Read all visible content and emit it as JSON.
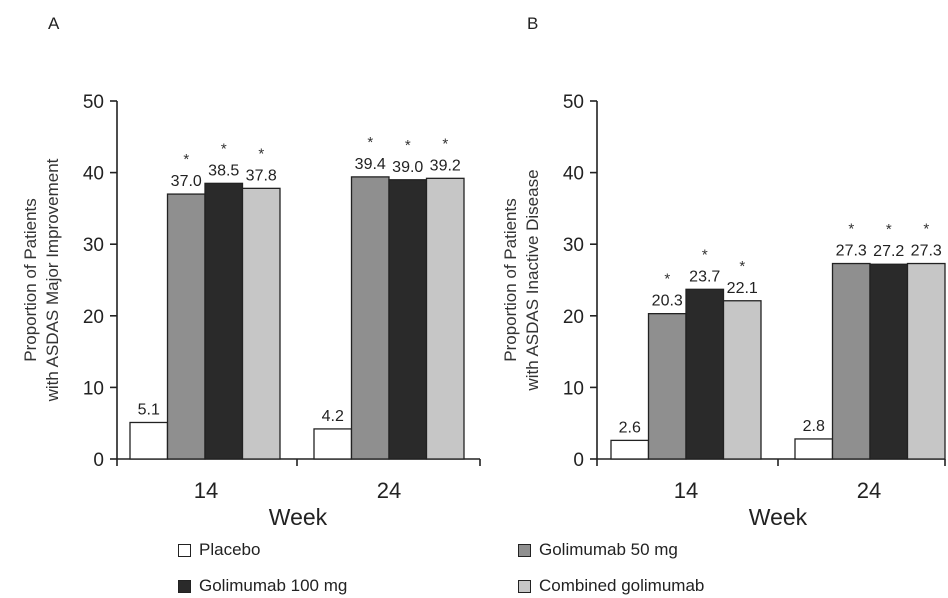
{
  "chart_data": [
    {
      "panel": "A",
      "type": "bar",
      "ylabel_line1": "Proportion of Patients",
      "ylabel_line2": "with ASDAS Major Improvement",
      "xlabel": "Week",
      "categories": [
        "14",
        "24"
      ],
      "ylim": [
        0,
        50
      ],
      "yticks": [
        0,
        10,
        20,
        30,
        40,
        50
      ],
      "series": [
        {
          "name": "Placebo",
          "values": [
            5.1,
            4.2
          ],
          "labels": [
            "5.1",
            "4.2"
          ],
          "significant": [
            false,
            false
          ]
        },
        {
          "name": "Golimumab 50 mg",
          "values": [
            37.0,
            39.4
          ],
          "labels": [
            "37.0",
            "39.4"
          ],
          "significant": [
            true,
            true
          ]
        },
        {
          "name": "Golimumab 100 mg",
          "values": [
            38.5,
            39.0
          ],
          "labels": [
            "38.5",
            "39.0"
          ],
          "significant": [
            true,
            true
          ]
        },
        {
          "name": "Combined golimumab",
          "values": [
            37.8,
            39.2
          ],
          "labels": [
            "37.8",
            "39.2"
          ],
          "significant": [
            true,
            true
          ]
        }
      ]
    },
    {
      "panel": "B",
      "type": "bar",
      "ylabel_line1": "Proportion of Patients",
      "ylabel_line2": "with ASDAS Inactive Disease",
      "xlabel": "Week",
      "categories": [
        "14",
        "24"
      ],
      "ylim": [
        0,
        50
      ],
      "yticks": [
        0,
        10,
        20,
        30,
        40,
        50
      ],
      "series": [
        {
          "name": "Placebo",
          "values": [
            2.6,
            2.8
          ],
          "labels": [
            "2.6",
            "2.8"
          ],
          "significant": [
            false,
            false
          ]
        },
        {
          "name": "Golimumab 50 mg",
          "values": [
            20.3,
            27.3
          ],
          "labels": [
            "20.3",
            "27.3"
          ],
          "significant": [
            true,
            true
          ]
        },
        {
          "name": "Golimumab 100 mg",
          "values": [
            23.7,
            27.2
          ],
          "labels": [
            "23.7",
            "27.2"
          ],
          "significant": [
            true,
            true
          ]
        },
        {
          "name": "Combined golimumab",
          "values": [
            22.1,
            27.3
          ],
          "labels": [
            "22.1",
            "27.3"
          ],
          "significant": [
            true,
            true
          ]
        }
      ]
    }
  ],
  "significance_marker": "*",
  "colors": {
    "Placebo": "#ffffff",
    "Golimumab 50 mg": "#8f8f8f",
    "Golimumab 100 mg": "#2a2a2a",
    "Combined golimumab": "#c6c6c6"
  },
  "legend": [
    {
      "label": "Placebo"
    },
    {
      "label": "Golimumab 50 mg"
    },
    {
      "label": "Golimumab 100 mg"
    },
    {
      "label": "Combined golimumab"
    }
  ]
}
